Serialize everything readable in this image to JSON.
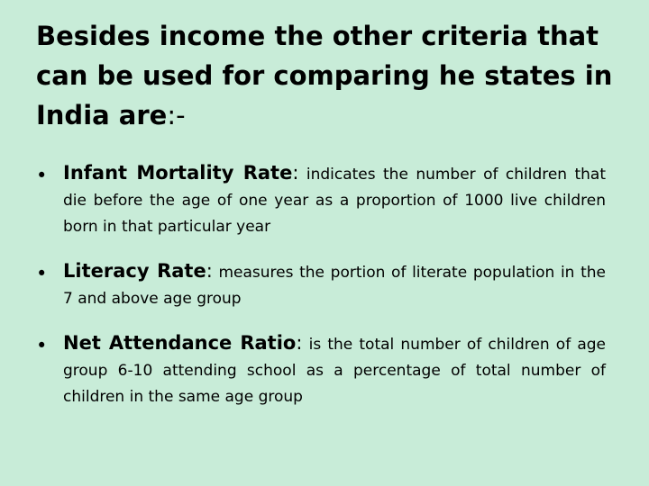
{
  "title": {
    "main": "Besides income the other criteria that can be used for comparing he states in India are",
    "suffix": ":-"
  },
  "bullet_symbol": "•",
  "bullets": [
    {
      "term": "Infant Mortality Rate",
      "separator": ":",
      "description": "indicates the number of children that die before the age of one year as a proportion of 1000 live children born in that particular year"
    },
    {
      "term": "Literacy Rate",
      "separator": ":",
      "description": "measures the portion of literate population in the 7 and above age group"
    },
    {
      "term": "Net Attendance Ratio",
      "separator": ":",
      "description": "is the total number of children of age group 6-10 attending school as a percentage of total number of children in the same age group"
    }
  ]
}
